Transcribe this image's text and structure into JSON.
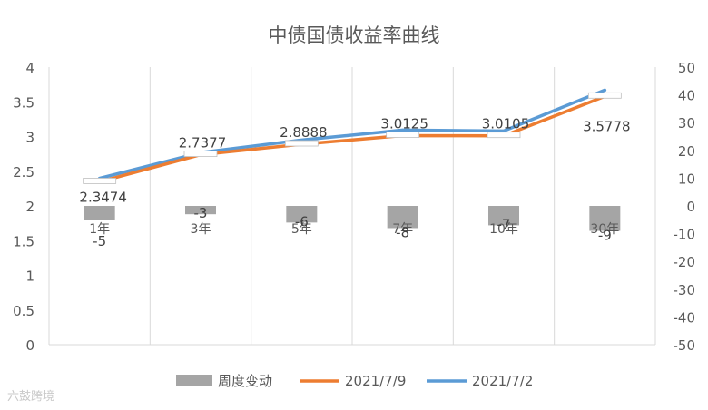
{
  "chart_data": {
    "type": "bar+line",
    "title": "中债国债收益率曲线",
    "categories": [
      "1年",
      "3年",
      "5年",
      "7年",
      "10年",
      "30年"
    ],
    "series": [
      {
        "name": "周度变动",
        "type": "bar",
        "axis": "right",
        "values": [
          -5,
          -3,
          -6,
          -8,
          -7,
          -9
        ],
        "color": "#a5a5a5"
      },
      {
        "name": "2021/7/9",
        "type": "line",
        "axis": "left",
        "values": [
          2.3474,
          2.7377,
          2.8888,
          3.0125,
          3.0105,
          3.5778
        ],
        "color": "#ed7d31"
      },
      {
        "name": "2021/7/2",
        "type": "line",
        "axis": "left",
        "values": [
          2.3974,
          2.7677,
          2.9488,
          3.0925,
          3.0805,
          3.6678
        ],
        "color": "#5b9bd5"
      }
    ],
    "data_labels": {
      "bar": [
        "-5",
        "-3",
        "-6",
        "-8",
        "-7",
        "-9"
      ],
      "line": [
        "2.3474",
        "2.7377",
        "2.8888",
        "3.0125",
        "3.0105",
        "3.5778"
      ]
    },
    "y_left": {
      "min": 0,
      "max": 4,
      "ticks": [
        "0",
        "0.5",
        "1",
        "1.5",
        "2",
        "2.5",
        "3",
        "3.5",
        "4"
      ]
    },
    "y_right": {
      "min": -50,
      "max": 50,
      "ticks": [
        "-50",
        "-40",
        "-30",
        "-20",
        "-10",
        "0",
        "10",
        "20",
        "30",
        "40",
        "50"
      ]
    },
    "grid": "vertical-category",
    "legend": "bottom"
  },
  "watermark": "六鼓跨境"
}
